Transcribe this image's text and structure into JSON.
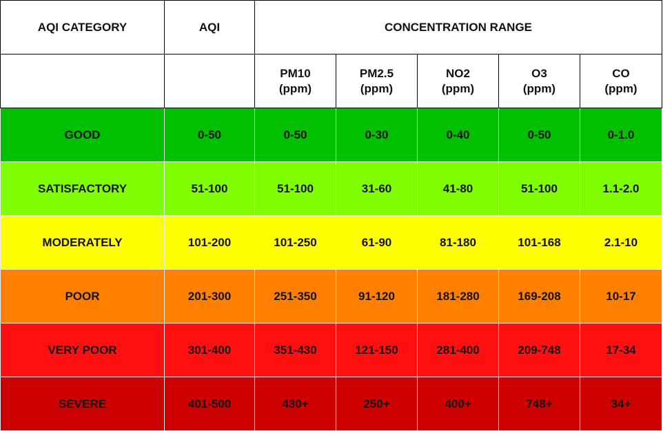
{
  "header": {
    "category": "AQI CATEGORY",
    "aqi": "AQI",
    "concentration": "CONCENTRATION RANGE",
    "pollutants": [
      {
        "name": "PM10",
        "unit": "(ppm)"
      },
      {
        "name": "PM2.5",
        "unit": "(ppm)"
      },
      {
        "name": "NO2",
        "unit": "(ppm)"
      },
      {
        "name": "O3",
        "unit": "(ppm)"
      },
      {
        "name": "CO",
        "unit": "(ppm)"
      }
    ]
  },
  "rows": [
    {
      "category": "GOOD",
      "color": "#00c000",
      "aqi": "0-50",
      "values": [
        "0-50",
        "0-30",
        "0-40",
        "0-50",
        "0-1.0"
      ]
    },
    {
      "category": "SATISFACTORY",
      "color": "#80ff00",
      "aqi": "51-100",
      "values": [
        "51-100",
        "31-60",
        "41-80",
        "51-100",
        "1.1-2.0"
      ]
    },
    {
      "category": "MODERATELY",
      "color": "#ffff00",
      "aqi": "101-200",
      "values": [
        "101-250",
        "61-90",
        "81-180",
        "101-168",
        "2.1-10"
      ]
    },
    {
      "category": "POOR",
      "color": "#ff8000",
      "aqi": "201-300",
      "values": [
        "251-350",
        "91-120",
        "181-280",
        "169-208",
        "10-17"
      ]
    },
    {
      "category": "VERY POOR",
      "color": "#ff0f0f",
      "aqi": "301-400",
      "values": [
        "351-430",
        "121-150",
        "281-400",
        "209-748",
        "17-34"
      ]
    },
    {
      "category": "SEVERE",
      "color": "#cc0000",
      "aqi": "401-500",
      "values": [
        "430+",
        "250+",
        "400+",
        "748+",
        "34+"
      ]
    }
  ]
}
